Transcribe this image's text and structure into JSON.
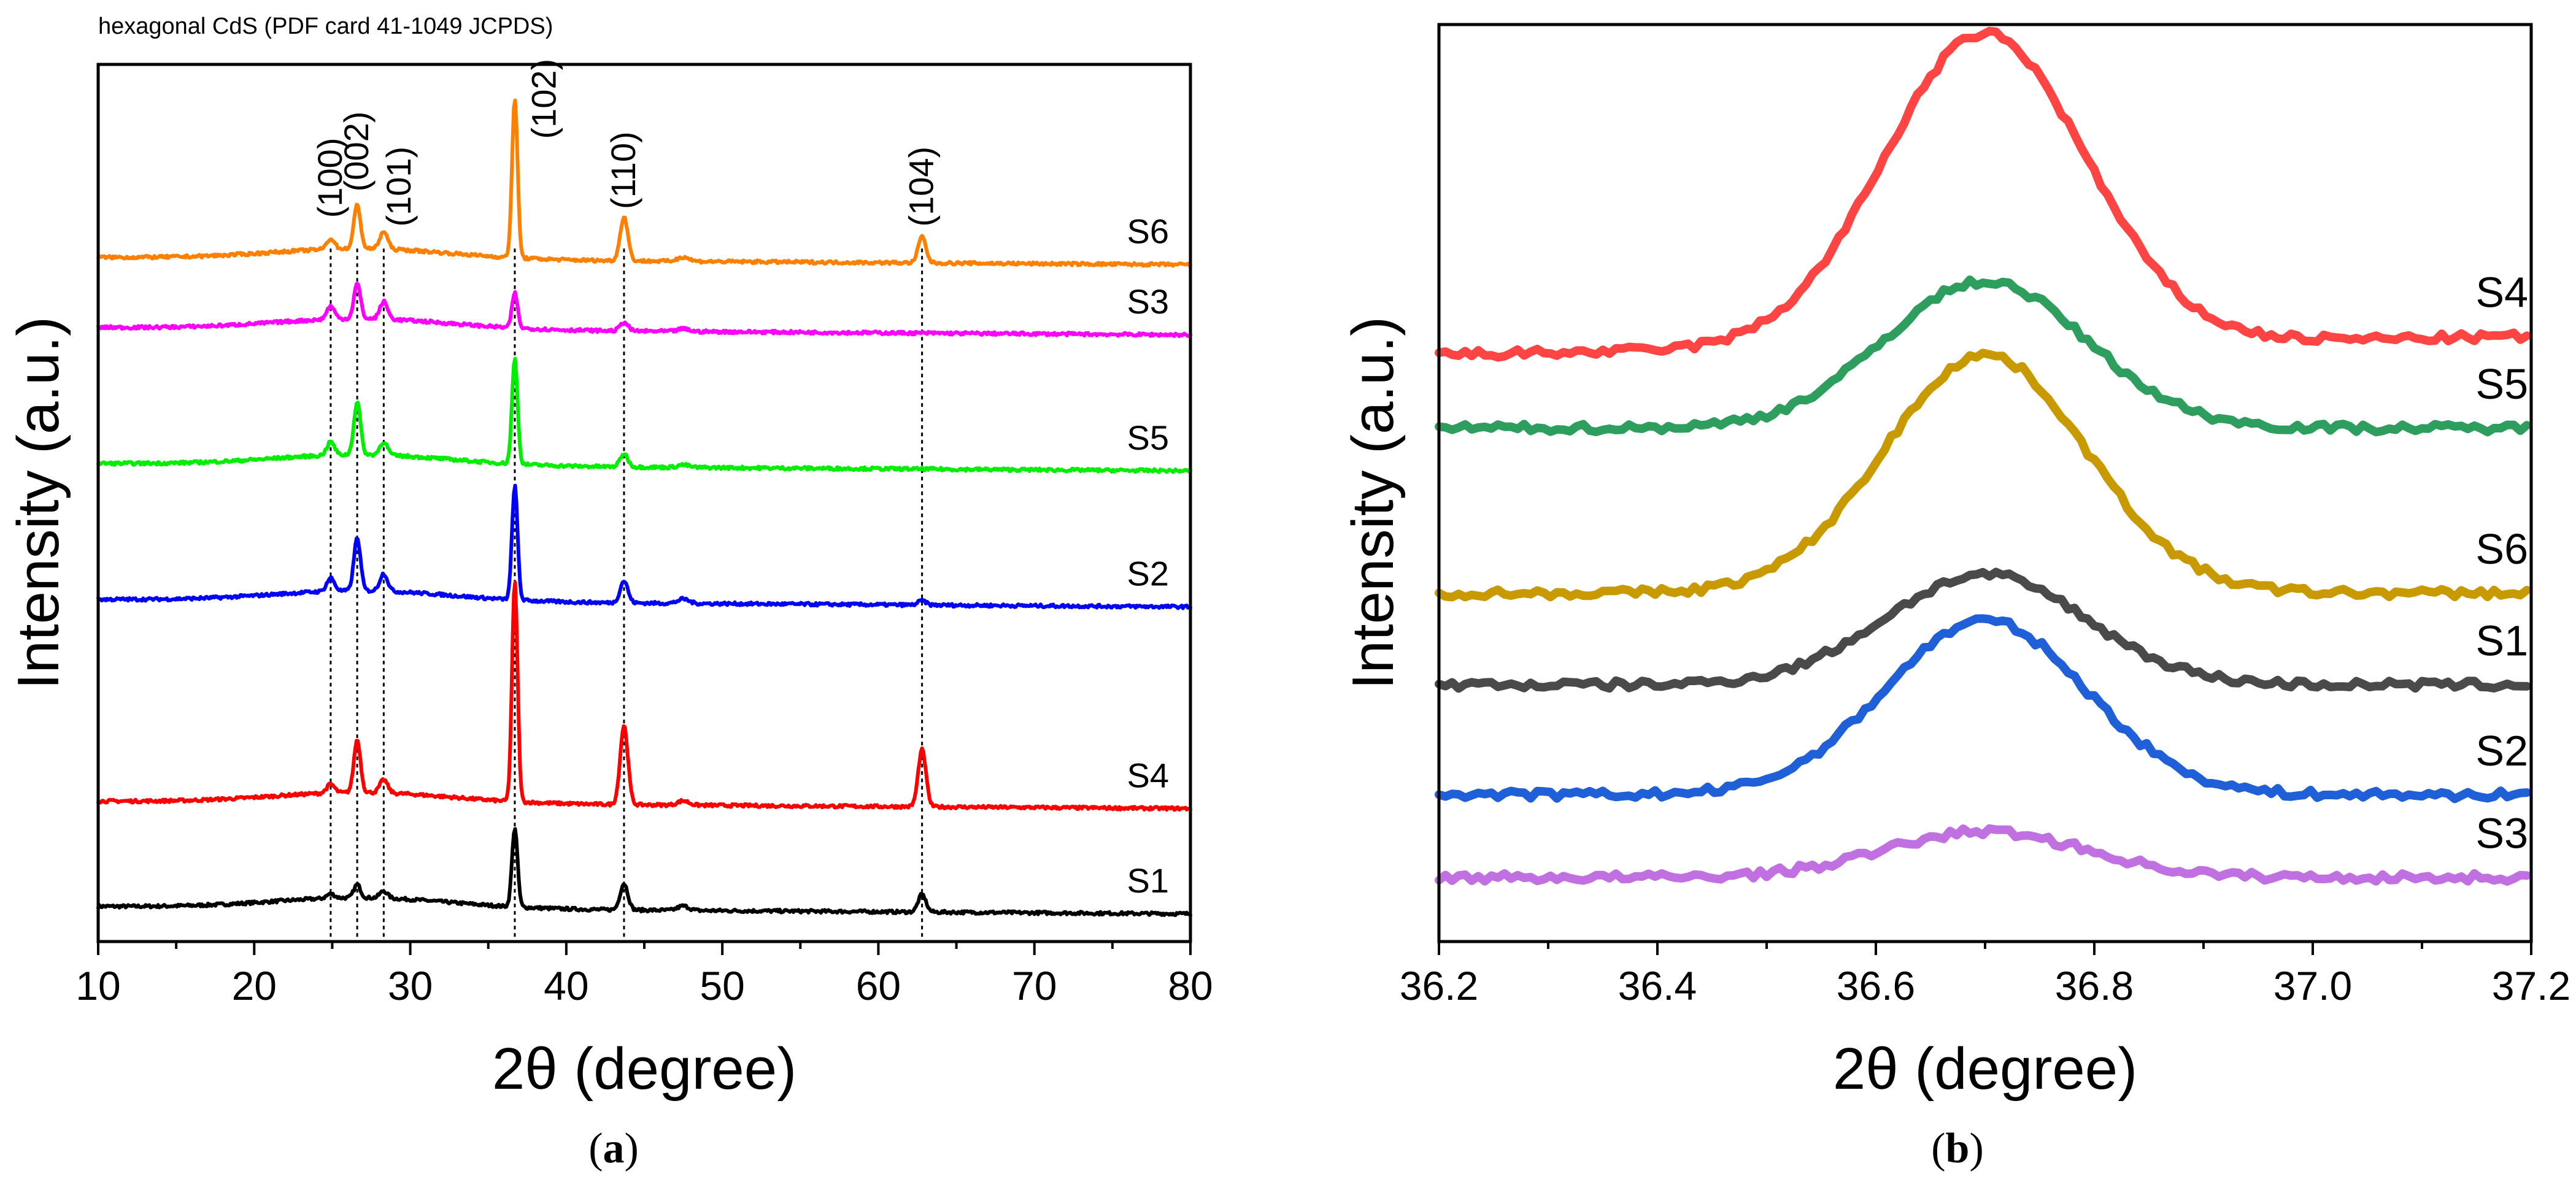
{
  "chart_data": [
    {
      "type": "line",
      "panel": "(a)",
      "note": "hexagonal CdS (PDF card 41-1049 JCPDS)",
      "xlabel": "2θ (degree)",
      "ylabel": "Intensity (a.u.)",
      "xlim": [
        10,
        80
      ],
      "ylim": [
        0,
        100
      ],
      "xticks": [
        10,
        20,
        30,
        40,
        50,
        60,
        70,
        80
      ],
      "peaks": [
        {
          "label": "(100)",
          "x": 24.9
        },
        {
          "label": "(002)",
          "x": 26.6
        },
        {
          "label": "(101)",
          "x": 28.3
        },
        {
          "label": "(102)",
          "x": 36.7
        },
        {
          "label": "(110)",
          "x": 43.7
        },
        {
          "label": "(104)",
          "x": 62.8
        }
      ],
      "series": [
        {
          "name": "S1",
          "color": "#000000",
          "baseline": 4,
          "peak_heights": [
            0.5,
            1.5,
            0.8,
            9,
            3,
            2
          ]
        },
        {
          "name": "S4",
          "color": "#ff0000",
          "baseline": 16,
          "peak_heights": [
            1,
            6,
            1.5,
            25,
            9,
            6.5
          ]
        },
        {
          "name": "S2",
          "color": "#0000ff",
          "baseline": 39,
          "peak_heights": [
            1.5,
            6,
            2,
            13,
            2.5,
            0.5
          ]
        },
        {
          "name": "S5",
          "color": "#00ee00",
          "baseline": 54.5,
          "peak_heights": [
            1.5,
            6,
            1.5,
            12,
            1.5,
            0
          ]
        },
        {
          "name": "S3",
          "color": "#ff00ff",
          "baseline": 70,
          "peak_heights": [
            1.5,
            4,
            2,
            4,
            1,
            0
          ]
        },
        {
          "name": "S6",
          "color": "#ff8000",
          "baseline": 78,
          "peak_heights": [
            1.2,
            5,
            2,
            18,
            5,
            3
          ]
        }
      ]
    },
    {
      "type": "line",
      "panel": "(b)",
      "xlabel": "2θ (degree)",
      "ylabel": "Intensity (a.u.)",
      "xlim": [
        36.2,
        37.2
      ],
      "ylim": [
        0,
        100
      ],
      "xticks": [
        36.2,
        36.4,
        36.6,
        36.8,
        37.0,
        37.2
      ],
      "xtick_labels": [
        "36.2",
        "36.4",
        "36.6",
        "36.8",
        "37.0",
        "37.2"
      ],
      "peak_center": 36.7,
      "series": [
        {
          "name": "S4",
          "color": "#ff4444",
          "left": 64,
          "right": 66,
          "peak": 99
        },
        {
          "name": "S5",
          "color": "#2e9e5e",
          "left": 56,
          "right": 56,
          "peak": 72
        },
        {
          "name": "S6",
          "color": "#c89a00",
          "left": 38,
          "right": 38,
          "peak": 64
        },
        {
          "name": "S1",
          "color": "#4a4a4a",
          "left": 28,
          "right": 28,
          "peak": 40
        },
        {
          "name": "S2",
          "color": "#1f5fd8",
          "left": 16,
          "right": 16,
          "peak": 35
        },
        {
          "name": "S3",
          "color": "#c070e0",
          "left": 7,
          "right": 7,
          "peak": 12
        }
      ]
    }
  ]
}
